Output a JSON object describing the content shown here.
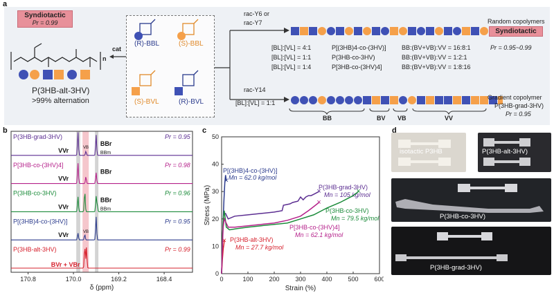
{
  "colors": {
    "blue": "#3f51b5",
    "orange": "#f5a04a",
    "purple": "#5b2d91",
    "magenta": "#b5208a",
    "green": "#1b8b3a",
    "red": "#d6202c",
    "navy": "#2a3a8c",
    "pink_box": "#e8909a",
    "gray_band": "#c8c8c8",
    "pink_band": "#f2b8bf"
  },
  "panel_a": {
    "letter": "a",
    "syndiotactic_box": {
      "label": "Syndiotactic",
      "pr": "Pr = 0.99"
    },
    "polymer_label": "P(3HB-alt-3HV)",
    "alternation": ">99% alternation",
    "n_label": "n",
    "cat_label": "cat",
    "monomers": [
      {
        "label": "(R)-BBL"
      },
      {
        "label": "(S)-BBL"
      },
      {
        "label": "(S)-BVL"
      },
      {
        "label": "(R)-BVL"
      }
    ],
    "catalyst_upper_1": "rac-Y6 or",
    "catalyst_upper_2": "rac-Y7",
    "random_copolymers": "Random copolymers",
    "syndiotactic_box2": {
      "label": "Syndiotactic",
      "pr": "Pr = 0.95~0.99"
    },
    "ratio_rows": [
      {
        "ratio": "[BL]:[VL] = 4:1",
        "polymer": "P[(3HB)4-co-(3HV)]",
        "dyads": "BB:(BV+VB):VV = 16:8:1"
      },
      {
        "ratio": "[BL]:[VL] = 1:1",
        "polymer": "P(3HB-co-3HV)",
        "dyads": "BB:(BV+VB):VV = 1:2:1"
      },
      {
        "ratio": "[BL]:[VL] = 1:4",
        "polymer": "P[3HB-co-(3HV)4]",
        "dyads": "BB:(BV+VB):VV = 1:8:16"
      }
    ],
    "catalyst_lower": "rac-Y14",
    "ratio_lower": "[BL]:[VL] = 1:1",
    "gradient_label": "Gradient copolymer",
    "gradient_polymer": "P(3HB-grad-3HV)",
    "gradient_pr": "Pr = 0.95",
    "segments": [
      "BB",
      "BV",
      "VB",
      "VV"
    ],
    "random_chain": [
      "bs",
      "os",
      "bs",
      "oc",
      "bc",
      "bs",
      "oc",
      "bs",
      "oc",
      "bs",
      "bc",
      "os",
      "oc",
      "bs",
      "bc",
      "bs",
      "oc",
      "bs",
      "bc",
      "os",
      "bs",
      "oc",
      "bs"
    ],
    "gradient_chain": [
      "bc",
      "bc",
      "bc",
      "oc",
      "bc",
      "bc",
      "bc",
      "bc",
      "bs",
      "os",
      "bs",
      "os",
      "bc",
      "oc",
      "bs",
      "os",
      "bs",
      "bs",
      "os",
      "bs",
      "os",
      "os",
      "bs",
      "os"
    ]
  },
  "panel_b": {
    "letter": "b",
    "xlabel": "δ (ppm)",
    "ticks": [
      "170.8",
      "170.0",
      "169.2",
      "168.4"
    ],
    "spectra": [
      {
        "name": "P(3HB-grad-3HV)",
        "pr": "Pr = 0.95",
        "color": "#5b2d91",
        "peaks": [
          "VVr",
          "VB",
          "BBr",
          "BBm"
        ]
      },
      {
        "name": "P[3HB-co-(3HV)4]",
        "pr": "Pr = 0.98",
        "color": "#b5208a",
        "peaks": [
          "VVr",
          "BBr"
        ]
      },
      {
        "name": "P(3HB-co-3HV)",
        "pr": "Pr = 0.96",
        "color": "#1b8b3a",
        "peaks": [
          "VVr",
          "BBr",
          "BBm"
        ]
      },
      {
        "name": "P[(3HB)4-co-(3HV)]",
        "pr": "Pr = 0.95",
        "color": "#2a3a8c",
        "peaks": [
          "VVr",
          "VB"
        ]
      },
      {
        "name": "P(3HB-alt-3HV)",
        "pr": "Pr = 0.99",
        "color": "#d6202c",
        "peaks": [
          "BVr + VBr"
        ]
      }
    ]
  },
  "chart_data": {
    "type": "line",
    "title": "",
    "xlabel": "Strain (%)",
    "ylabel": "Stress (MPa)",
    "xlim": [
      0,
      600
    ],
    "ylim": [
      0,
      50
    ],
    "xticks": [
      0,
      100,
      200,
      300,
      400,
      500,
      600
    ],
    "yticks": [
      0,
      10,
      20,
      30,
      40,
      50
    ],
    "series": [
      {
        "name": "P[(3HB)4-co-(3HV)]",
        "mn": "Mn = 62.0 kg/mol",
        "color": "#2a3a8c",
        "x": [
          0,
          3,
          6,
          9,
          12,
          15,
          18
        ],
        "y": [
          0,
          10,
          20,
          27,
          33,
          36,
          34
        ]
      },
      {
        "name": "P(3HB-alt-3HV)",
        "mn": "Mn = 27.7 kg/mol",
        "color": "#d6202c",
        "x": [
          0,
          3,
          6,
          9,
          10
        ],
        "y": [
          0,
          5,
          9,
          11,
          12
        ]
      },
      {
        "name": "P(3HB-grad-3HV)",
        "mn": "Mn = 105 kg/mol",
        "color": "#5b2d91",
        "x": [
          0,
          4,
          8,
          15,
          25,
          50,
          100,
          150,
          200,
          230,
          235,
          260,
          270,
          290,
          300,
          310,
          320,
          330,
          340,
          350,
          360,
          370
        ],
        "y": [
          0,
          15,
          22,
          22,
          20,
          21,
          21.5,
          22,
          22.5,
          23,
          25,
          25.5,
          26,
          26.5,
          28,
          27,
          28,
          28.5,
          28.5,
          29,
          29.5,
          30
        ]
      },
      {
        "name": "P(3HB-co-3HV)",
        "mn": "Mn = 79.5 kg/mol",
        "color": "#1b8b3a",
        "x": [
          0,
          3,
          6,
          10,
          18,
          30,
          60,
          100,
          150,
          200,
          250,
          300,
          350,
          400,
          450,
          480,
          500,
          520
        ],
        "y": [
          0,
          12,
          20,
          23,
          17,
          16,
          16.5,
          17,
          17.5,
          18,
          18.5,
          20,
          21.5,
          24,
          26,
          27.5,
          28.5,
          30
        ]
      },
      {
        "name": "P[3HB-co-(3HV)4]",
        "mn": "Mn = 62.1 kg/mol",
        "color": "#b5208a",
        "x": [
          0,
          3,
          6,
          10,
          15,
          25,
          50,
          100,
          150,
          200,
          250,
          300,
          330,
          350,
          370
        ],
        "y": [
          0,
          10,
          17,
          20,
          19,
          17,
          17,
          17.5,
          18,
          18.5,
          19.5,
          21,
          23,
          24.5,
          26
        ]
      }
    ]
  },
  "panel_c": {
    "letter": "c"
  },
  "panel_d": {
    "letter": "d",
    "photos": [
      {
        "label": "isotactic P3HB"
      },
      {
        "label": "P(3HB-alt-3HV)"
      },
      {
        "label": "P(3HB-co-3HV)"
      },
      {
        "label": "P(3HB-grad-3HV)"
      }
    ]
  }
}
